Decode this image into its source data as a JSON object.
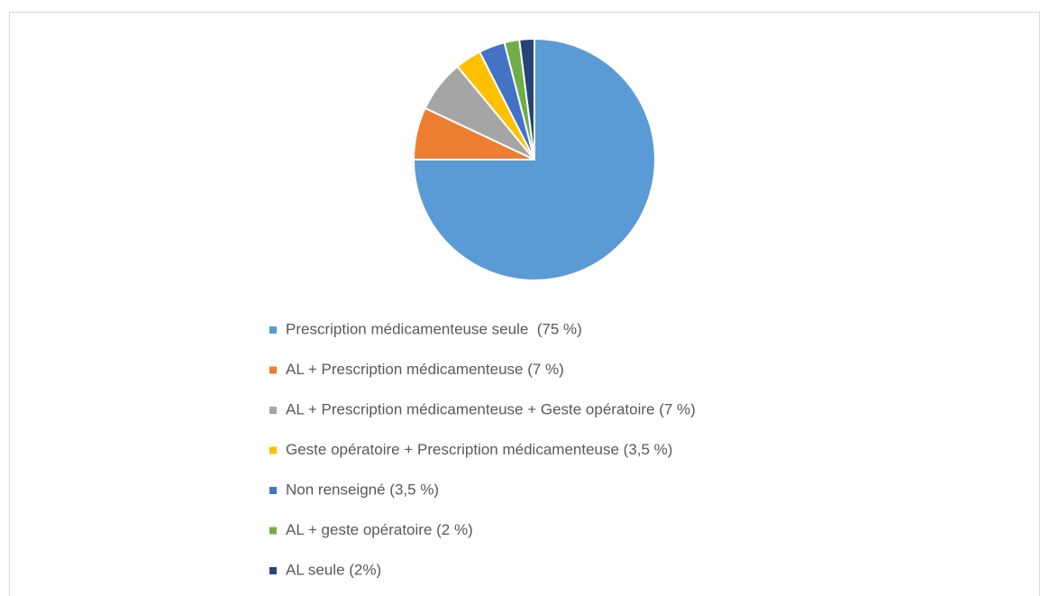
{
  "chart_data": {
    "type": "pie",
    "categories": [
      "Prescription médicamenteuse seule  (75 %)",
      "AL + Prescription médicamenteuse (7 %)",
      "AL + Prescription médicamenteuse + Geste opératoire (7 %)",
      "Geste opératoire + Prescription médicamenteuse (3,5 %)",
      "Non renseigné (3,5 %)",
      "AL + geste opératoire (2 %)",
      "AL seule (2%)"
    ],
    "values": [
      75,
      7,
      7,
      3.5,
      3.5,
      2,
      2
    ],
    "colors": [
      "#5b9bd5",
      "#ed7d31",
      "#a5a5a5",
      "#ffc000",
      "#4472c4",
      "#70ad47",
      "#264478"
    ],
    "legend": "bottom"
  }
}
